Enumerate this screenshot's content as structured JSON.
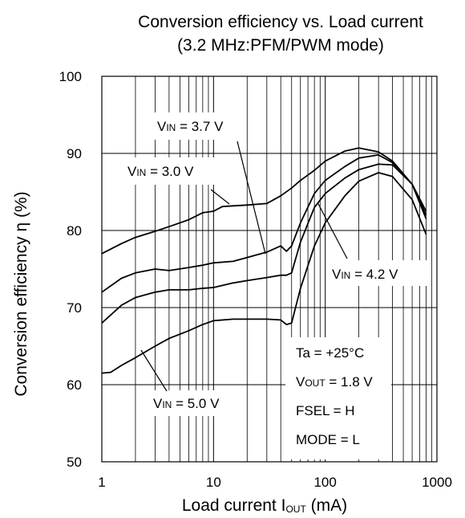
{
  "chart_data": {
    "type": "line",
    "title": "Conversion efficiency vs. Load current",
    "subtitle": "(3.2 MHz:PFM/PWM mode)",
    "xlabel": {
      "main": "Load current I",
      "sub": "OUT",
      "tail": " (mA)"
    },
    "ylabel": "Conversion efficiency η  (%)",
    "x_scale": "log",
    "xlim": [
      1,
      1000
    ],
    "ylim": [
      50,
      100
    ],
    "x_ticks": [
      "1",
      "10",
      "100",
      "1000"
    ],
    "y_ticks": [
      "100",
      "90",
      "80",
      "70",
      "60",
      "50"
    ],
    "grid": true,
    "series": [
      {
        "name": "VIN = 3.0 V",
        "label": {
          "main": "V",
          "sub": "IN",
          "tail": " = 3.0 V"
        },
        "x": [
          1,
          1.5,
          2,
          3,
          4,
          6,
          8,
          10,
          12,
          15,
          20,
          30,
          40,
          50,
          60,
          80,
          100,
          150,
          200,
          300,
          400,
          600,
          800
        ],
        "y": [
          77,
          78.3,
          79.1,
          79.9,
          80.5,
          81.4,
          82.3,
          82.5,
          83.1,
          83.2,
          83.3,
          83.5,
          84.5,
          85.5,
          86.5,
          87.8,
          89.0,
          90.3,
          90.7,
          90.2,
          89.0,
          86.0,
          82.5
        ]
      },
      {
        "name": "VIN = 3.7 V",
        "label": {
          "main": "V",
          "sub": "IN",
          "tail": " = 3.7 V"
        },
        "x": [
          1,
          1.5,
          2,
          3,
          4,
          6,
          8,
          10,
          15,
          20,
          30,
          40,
          45,
          50,
          60,
          80,
          100,
          150,
          200,
          300,
          400,
          600,
          800
        ],
        "y": [
          72,
          73.8,
          74.5,
          75,
          74.8,
          75.2,
          75.5,
          75.8,
          76,
          76.5,
          77.2,
          78,
          77.3,
          78,
          81,
          84.8,
          86.5,
          88.3,
          89.4,
          89.8,
          88.8,
          86.0,
          82.0
        ]
      },
      {
        "name": "VIN = 4.2 V",
        "label": {
          "main": "V",
          "sub": "IN",
          "tail": " = 4.2 V"
        },
        "x": [
          1,
          1.5,
          2,
          3,
          4,
          6,
          8,
          10,
          15,
          20,
          30,
          40,
          45,
          50,
          60,
          80,
          100,
          150,
          200,
          300,
          400,
          600,
          800
        ],
        "y": [
          68,
          70.3,
          71.3,
          72,
          72.3,
          72.3,
          72.5,
          72.6,
          73.2,
          73.5,
          73.9,
          74.2,
          74.2,
          74.5,
          78.5,
          83,
          84.8,
          86.8,
          87.9,
          88.6,
          88.5,
          86.0,
          81.5
        ]
      },
      {
        "name": "VIN = 5.0 V",
        "label": {
          "main": "V",
          "sub": "IN",
          "tail": " = 5.0 V"
        },
        "x": [
          1,
          1.2,
          1.5,
          2,
          3,
          4,
          6,
          8,
          10,
          15,
          20,
          30,
          40,
          45,
          50,
          60,
          80,
          100,
          150,
          200,
          300,
          400,
          600,
          800
        ],
        "y": [
          61.5,
          61.6,
          62.5,
          63.5,
          65,
          66,
          67,
          67.8,
          68.3,
          68.5,
          68.5,
          68.5,
          68.4,
          67.8,
          68,
          72.5,
          78,
          81,
          84.5,
          86.4,
          87.5,
          87.0,
          84.0,
          79.5
        ]
      }
    ],
    "conditions": [
      "Ta = +25°C",
      {
        "main": "V",
        "sub": "OUT",
        "tail": " = 1.8 V"
      },
      "FSEL = H",
      "MODE = L"
    ]
  }
}
